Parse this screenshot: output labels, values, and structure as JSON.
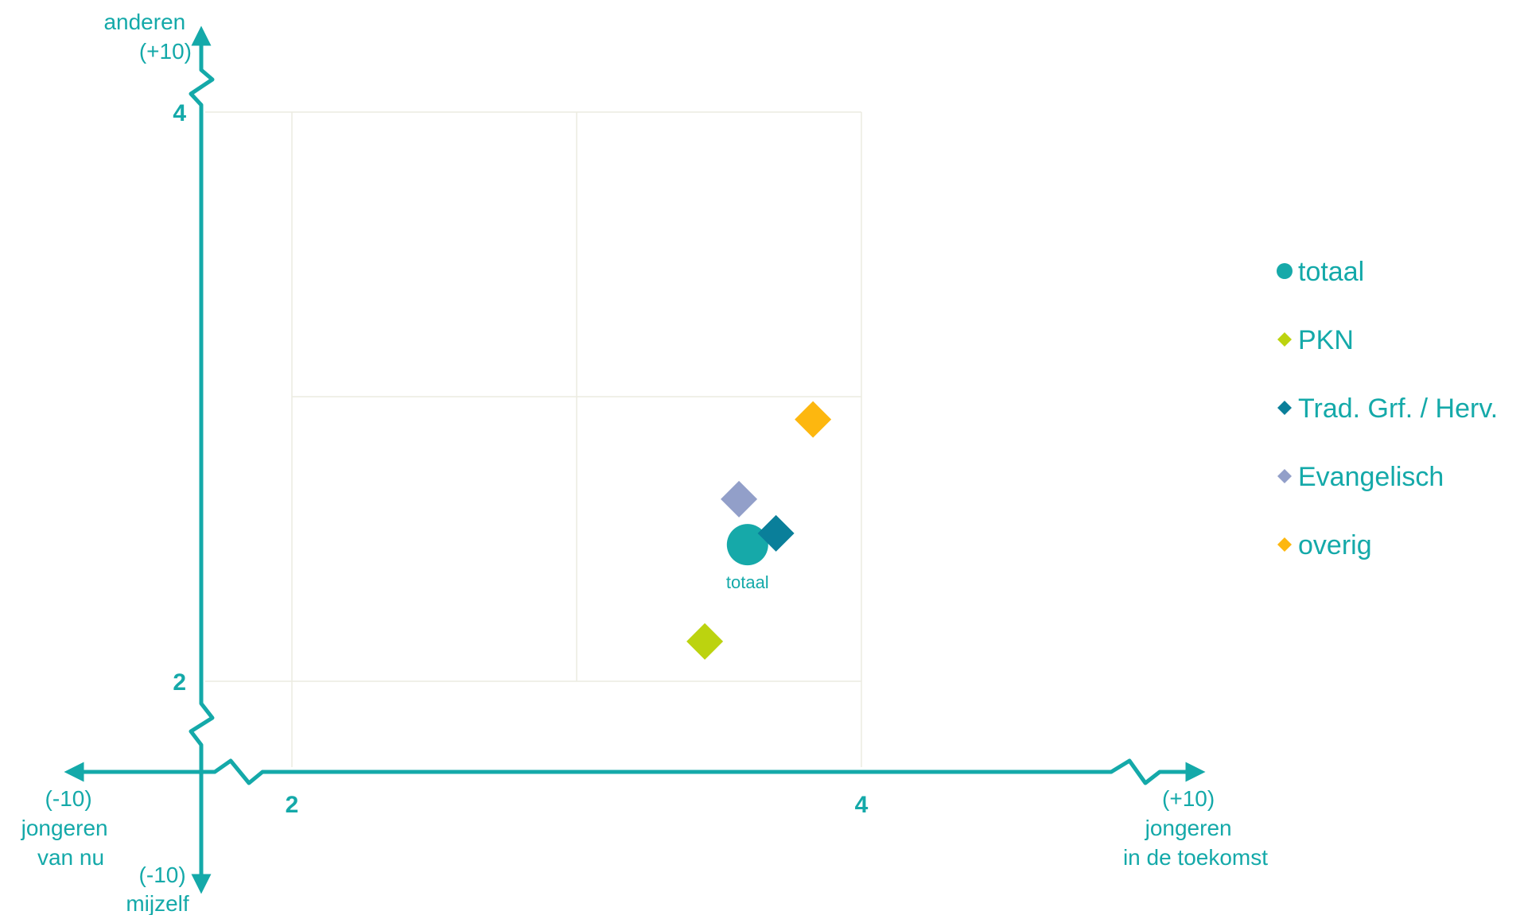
{
  "chart_data": {
    "type": "scatter",
    "x_axis": {
      "ticks": [
        2,
        4
      ],
      "range": [
        2,
        4
      ],
      "left_end_label": [
        "(-10)",
        "jongeren",
        "van nu"
      ],
      "right_end_label": [
        "(+10)",
        "jongeren",
        "in de toekomst"
      ]
    },
    "y_axis": {
      "ticks": [
        2,
        4
      ],
      "range": [
        2,
        4
      ],
      "top_end_label": [
        "anderen",
        "(+10)"
      ],
      "bottom_end_label": [
        "(-10)",
        "mijzelf"
      ]
    },
    "grid": true,
    "legend_position": "right",
    "series": [
      {
        "name": "totaal",
        "marker": "circle",
        "color": "#16a9a9",
        "x": 3.6,
        "y": 2.48,
        "label": "totaal"
      },
      {
        "name": "PKN",
        "marker": "diamond",
        "color": "#bcd30f",
        "x": 3.45,
        "y": 2.14
      },
      {
        "name": "Trad. Grf. / Herv.",
        "marker": "diamond",
        "color": "#0a7f9a",
        "x": 3.7,
        "y": 2.52
      },
      {
        "name": "Evangelisch",
        "marker": "diamond",
        "color": "#929fc9",
        "x": 3.57,
        "y": 2.64
      },
      {
        "name": "overig",
        "marker": "diamond",
        "color": "#fdb70f",
        "x": 3.83,
        "y": 2.92
      }
    ]
  }
}
